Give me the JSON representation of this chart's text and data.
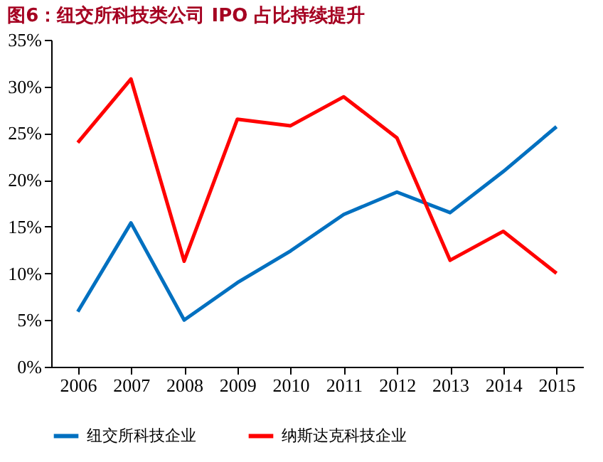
{
  "chart_data": {
    "type": "line",
    "title": "图6：纽交所科技类公司 IPO 占比持续提升",
    "categories": [
      "2006",
      "2007",
      "2008",
      "2009",
      "2010",
      "2011",
      "2012",
      "2013",
      "2014",
      "2015"
    ],
    "series": [
      {
        "name": "纽交所科技企业",
        "color": "#0070c0",
        "values": [
          5.9,
          15.4,
          5.0,
          9.0,
          12.4,
          16.3,
          18.7,
          16.5,
          20.9,
          25.7
        ]
      },
      {
        "name": "纳斯达克科技企业",
        "color": "#ff0000",
        "values": [
          24.0,
          30.8,
          11.3,
          26.5,
          25.8,
          28.9,
          24.5,
          11.4,
          14.5,
          10.0
        ]
      }
    ],
    "ylim": [
      0,
      35
    ],
    "yticks": [
      {
        "value": 0,
        "label": "0%"
      },
      {
        "value": 5,
        "label": "5%"
      },
      {
        "value": 10,
        "label": "10%"
      },
      {
        "value": 15,
        "label": "15%"
      },
      {
        "value": 20,
        "label": "20%"
      },
      {
        "value": 25,
        "label": "25%"
      },
      {
        "value": 30,
        "label": "30%"
      },
      {
        "value": 35,
        "label": "35%"
      }
    ],
    "grid": false,
    "legend": "bottom",
    "marker": "none",
    "line_style": "solid"
  }
}
